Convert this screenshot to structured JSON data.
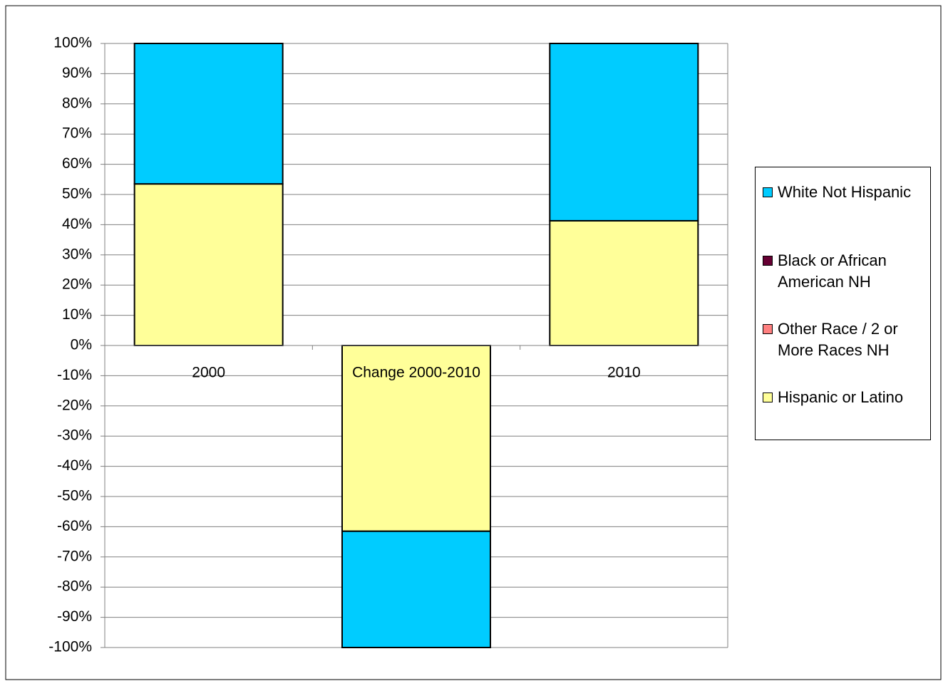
{
  "chart_data": {
    "type": "stacked_bar",
    "categories": [
      "2000",
      "Change 2000-2010",
      "2010"
    ],
    "series": [
      {
        "name": "White Not Hispanic",
        "color": "#00ccff",
        "values": [
          46.5,
          -38.5,
          58.7
        ]
      },
      {
        "name": "Black or African American NH",
        "color": "#660033",
        "values": [
          0,
          0,
          0
        ]
      },
      {
        "name": "Other Race / 2 or More Races NH",
        "color": "#ff8080",
        "values": [
          0,
          0,
          0
        ]
      },
      {
        "name": "Hispanic or Latino",
        "color": "#ffff99",
        "values": [
          53.5,
          -61.5,
          41.3
        ]
      }
    ],
    "ylim": [
      -100,
      100
    ],
    "yticks": [
      {
        "value": 100,
        "label": "100%"
      },
      {
        "value": 90,
        "label": "90%"
      },
      {
        "value": 80,
        "label": "80%"
      },
      {
        "value": 70,
        "label": "70%"
      },
      {
        "value": 60,
        "label": "60%"
      },
      {
        "value": 50,
        "label": "50%"
      },
      {
        "value": 40,
        "label": "40%"
      },
      {
        "value": 30,
        "label": "30%"
      },
      {
        "value": 20,
        "label": "20%"
      },
      {
        "value": 10,
        "label": "10%"
      },
      {
        "value": 0,
        "label": "0%"
      },
      {
        "value": -10,
        "label": "-10%"
      },
      {
        "value": -20,
        "label": "-20%"
      },
      {
        "value": -30,
        "label": "-30%"
      },
      {
        "value": -40,
        "label": "-40%"
      },
      {
        "value": -50,
        "label": "-50%"
      },
      {
        "value": -60,
        "label": "-60%"
      },
      {
        "value": -70,
        "label": "-70%"
      },
      {
        "value": -80,
        "label": "-80%"
      },
      {
        "value": -90,
        "label": "-90%"
      },
      {
        "value": -100,
        "label": "-100%"
      }
    ],
    "grid": true,
    "legend": "right"
  }
}
